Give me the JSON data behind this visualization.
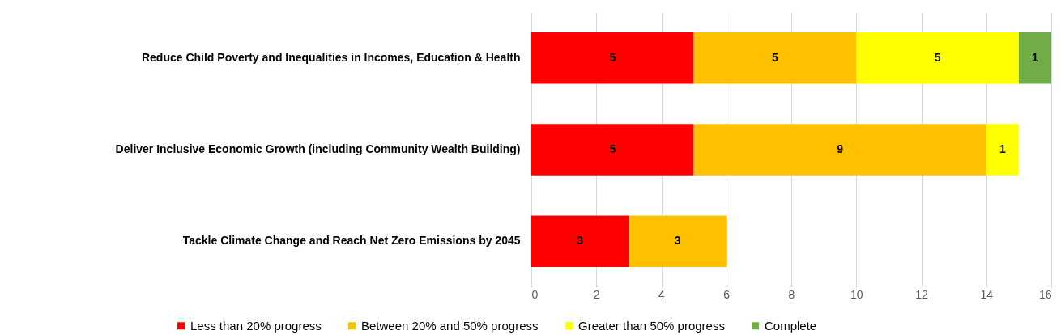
{
  "chart_data": {
    "type": "bar",
    "orientation": "horizontal",
    "stacked": true,
    "data_labels": true,
    "grid": "x",
    "legend": "bottom",
    "categories": [
      "Reduce Child Poverty and Inequalities in Incomes, Education & Health",
      "Deliver Inclusive Economic Growth (including Community Wealth Building)",
      "Tackle Climate Change and Reach Net Zero Emissions by 2045"
    ],
    "xlim": [
      0,
      16
    ],
    "xticks": [
      0,
      2,
      4,
      6,
      8,
      10,
      12,
      14,
      16
    ],
    "series": [
      {
        "name": "Less than 20% progress",
        "color": "#ff0000",
        "values": [
          5,
          5,
          3
        ]
      },
      {
        "name": "Between 20% and 50% progress",
        "color": "#ffc000",
        "values": [
          5,
          9,
          3
        ]
      },
      {
        "name": "Greater than 50% progress",
        "color": "#ffff00",
        "values": [
          5,
          1,
          null
        ]
      },
      {
        "name": "Complete",
        "color": "#70ad47",
        "values": [
          1,
          null,
          null
        ]
      }
    ]
  }
}
